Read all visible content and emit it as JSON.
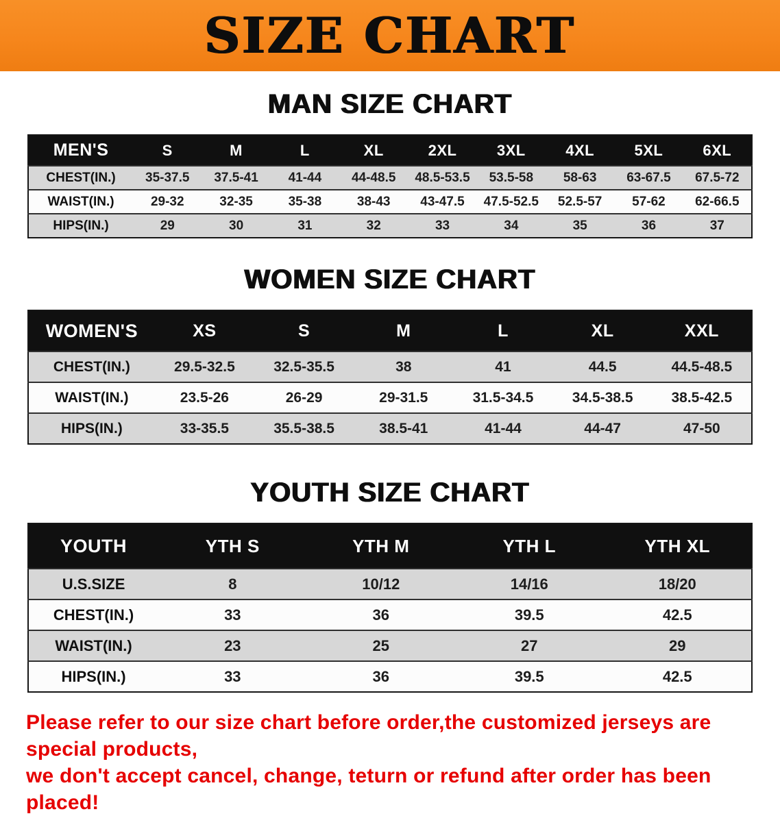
{
  "banner": {
    "title": "SIZE CHART"
  },
  "sections": [
    {
      "id": "men",
      "heading": "MAN SIZE CHART",
      "table": {
        "header": [
          "MEN'S",
          "S",
          "M",
          "L",
          "XL",
          "2XL",
          "3XL",
          "4XL",
          "5XL",
          "6XL"
        ],
        "rows": [
          [
            "CHEST(IN.)",
            "35-37.5",
            "37.5-41",
            "41-44",
            "44-48.5",
            "48.5-53.5",
            "53.5-58",
            "58-63",
            "63-67.5",
            "67.5-72"
          ],
          [
            "WAIST(IN.)",
            "29-32",
            "32-35",
            "35-38",
            "38-43",
            "43-47.5",
            "47.5-52.5",
            "52.5-57",
            "57-62",
            "62-66.5"
          ],
          [
            "HIPS(IN.)",
            "29",
            "30",
            "31",
            "32",
            "33",
            "34",
            "35",
            "36",
            "37"
          ]
        ]
      }
    },
    {
      "id": "women",
      "heading": "WOMEN SIZE CHART",
      "table": {
        "header": [
          "WOMEN'S",
          "XS",
          "S",
          "M",
          "L",
          "XL",
          "XXL"
        ],
        "rows": [
          [
            "CHEST(IN.)",
            "29.5-32.5",
            "32.5-35.5",
            "38",
            "41",
            "44.5",
            "44.5-48.5"
          ],
          [
            "WAIST(IN.)",
            "23.5-26",
            "26-29",
            "29-31.5",
            "31.5-34.5",
            "34.5-38.5",
            "38.5-42.5"
          ],
          [
            "HIPS(IN.)",
            "33-35.5",
            "35.5-38.5",
            "38.5-41",
            "41-44",
            "44-47",
            "47-50"
          ]
        ]
      }
    },
    {
      "id": "youth",
      "heading": "YOUTH SIZE CHART",
      "table": {
        "header": [
          "YOUTH",
          "YTH S",
          "YTH M",
          "YTH L",
          "YTH XL"
        ],
        "rows": [
          [
            "U.S.SIZE",
            "8",
            "10/12",
            "14/16",
            "18/20"
          ],
          [
            "CHEST(IN.)",
            "33",
            "36",
            "39.5",
            "42.5"
          ],
          [
            "WAIST(IN.)",
            "23",
            "25",
            "27",
            "29"
          ],
          [
            "HIPS(IN.)",
            "33",
            "36",
            "39.5",
            "42.5"
          ]
        ]
      }
    }
  ],
  "footer": {
    "line1": "Please refer to our size chart before order,the customized jerseys are special products,",
    "line2": "we don't accept cancel, change, teturn or refund after order has been placed!"
  },
  "colors": {
    "banner_orange": "#f6861c",
    "header_black": "#101010",
    "row_gray": "#d7d7d7",
    "row_white": "#fcfcfc",
    "footer_red": "#e60000"
  }
}
